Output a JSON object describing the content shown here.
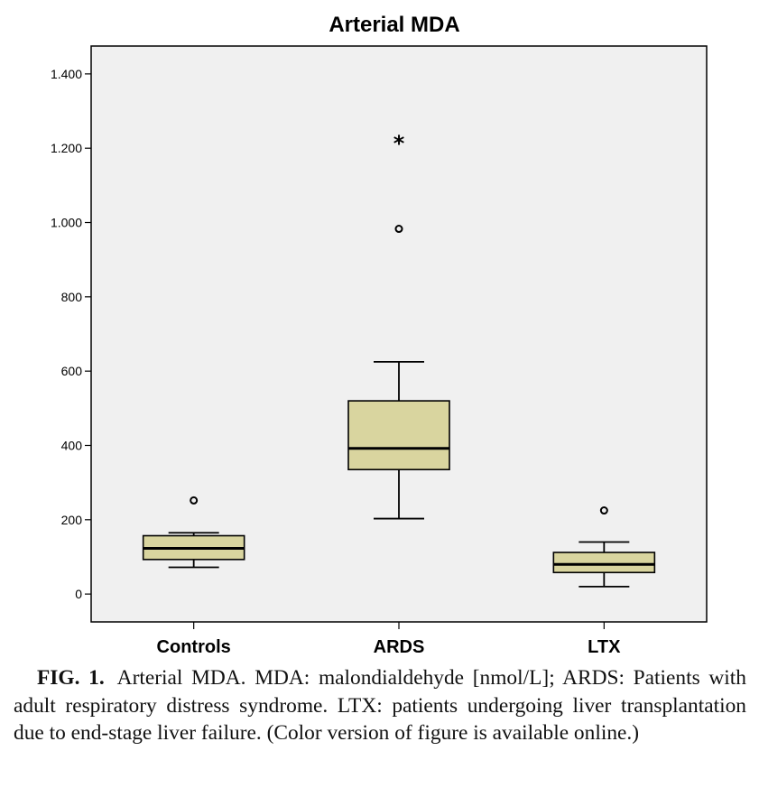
{
  "chart_data": {
    "type": "box",
    "title": "Arterial MDA",
    "xlabel": "",
    "ylabel": "",
    "ylim": [
      -75,
      1475
    ],
    "yticks": [
      0,
      200,
      400,
      600,
      800,
      1000,
      1200,
      1400
    ],
    "ytick_labels": [
      "0",
      "200",
      "400",
      "600",
      "800",
      "1.000",
      "1.200",
      "1.400"
    ],
    "grid": false,
    "box_fill": "#d9d59f",
    "plot_background": "#f0f0f0",
    "categories": [
      "Controls",
      "ARDS",
      "LTX"
    ],
    "boxes": [
      {
        "category": "Controls",
        "whisker_low": 72,
        "q1": 93,
        "median": 123,
        "q3": 157,
        "whisker_high": 165,
        "outliers": [
          {
            "value": 252,
            "marker": "circle"
          }
        ]
      },
      {
        "category": "ARDS",
        "whisker_low": 203,
        "q1": 335,
        "median": 392,
        "q3": 520,
        "whisker_high": 625,
        "outliers": [
          {
            "value": 983,
            "marker": "circle"
          },
          {
            "value": 1222,
            "marker": "star"
          }
        ]
      },
      {
        "category": "LTX",
        "whisker_low": 20,
        "q1": 58,
        "median": 80,
        "q3": 112,
        "whisker_high": 140,
        "outliers": [
          {
            "value": 225,
            "marker": "circle"
          }
        ]
      }
    ]
  },
  "caption": {
    "label": "FIG. 1.",
    "text": "Arterial MDA. MDA: malondialdehyde [nmol/L]; ARDS: Patients with adult respiratory distress syndrome. LTX: patients un­dergoing liver transplantation due to end-stage liver failure. (Color version of figure is available online.)"
  }
}
